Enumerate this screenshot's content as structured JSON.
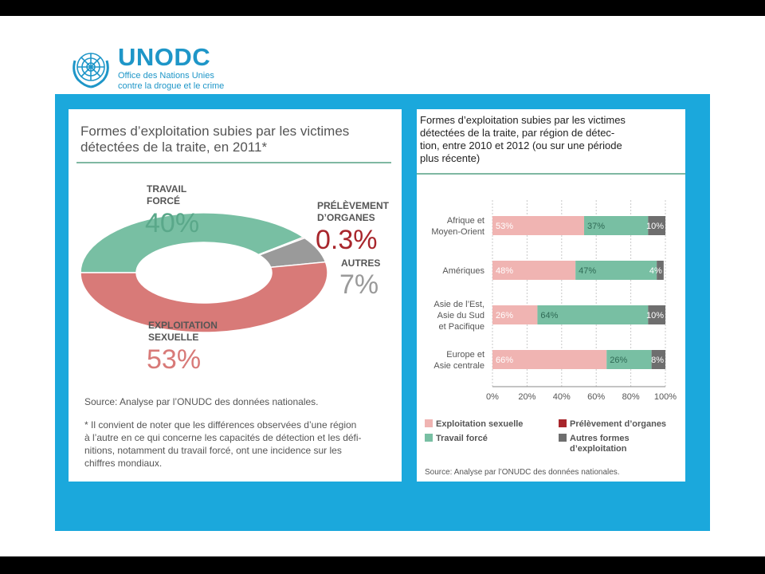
{
  "logo": {
    "brand": "UNODC",
    "line1": "Office des Nations Unies",
    "line2": "contre la drogue et le crime"
  },
  "colors": {
    "sexual": "#d87a78",
    "sexual_light": "#f0b4b2",
    "forced": "#78bfa3",
    "organs": "#a8262c",
    "others": "#9a9a9a",
    "others_dark": "#6e6e6e",
    "band": "#1ba8dc"
  },
  "left": {
    "title_lines": [
      "Formes d’exploitation subies par les victimes",
      "détectées de la traite, en 2011*"
    ],
    "source": "Source: Analyse par l’ONUDC des données nationales.",
    "note_lines": [
      "* Il convient de noter que les différences observées d’une région",
      "à l’autre en ce qui concerne les capacités de détection et les défi-",
      "nitions, notamment du travail forcé, ont une incidence sur les",
      "chiffres mondiaux."
    ]
  },
  "right": {
    "title_lines": [
      "Formes d’exploitation subies par les victimes",
      "détectées de la traite, par région de détec-",
      "tion, entre 2010 et 2012 (ou sur une période",
      "plus récente)"
    ],
    "legend": {
      "sexual": "Exploitation sexuelle",
      "organs": "Prélèvement d’organes",
      "forced": "Travail forcé",
      "others_1": "Autres formes",
      "others_2": "d’exploitation"
    },
    "source": "Source: Analyse par l’ONUDC des données nationales."
  },
  "chart_data": [
    {
      "type": "pie",
      "title": "Formes d’exploitation subies par les victimes détectées de la traite, en 2011*",
      "slices": [
        {
          "label": "TRAVAIL FORCÉ",
          "value": 40,
          "value_text": "40%"
        },
        {
          "label": "PRÉLÈVEMENT D’ORGANES",
          "value": 0.3,
          "value_text": "0.3%"
        },
        {
          "label": "AUTRES",
          "value": 7,
          "value_text": "7%"
        },
        {
          "label": "EXPLOITATION SEXUELLE",
          "value": 53,
          "value_text": "53%"
        }
      ],
      "labels": {
        "forced_1": "TRAVAIL",
        "forced_2": "FORCÉ",
        "organs_1": "PRÉLÈVEMENT",
        "organs_2": "D’ORGANES",
        "others": "AUTRES",
        "sexual_1": "EXPLOITATION",
        "sexual_2": "SEXUELLE"
      },
      "style": "donut"
    },
    {
      "type": "bar",
      "orientation": "horizontal",
      "stacked": true,
      "title": "Formes d’exploitation subies par les victimes détectées de la traite, par région de détection, entre 2010 et 2012 (ou sur une période plus récente)",
      "categories": [
        [
          "Afrique et",
          "Moyen-Orient"
        ],
        [
          "Amériques"
        ],
        [
          "Asie de l’Est,",
          "Asie du Sud",
          "et Pacifique"
        ],
        [
          "Europe et",
          "Asie centrale"
        ]
      ],
      "series": [
        {
          "name": "Exploitation sexuelle",
          "values": [
            53,
            48,
            26,
            66
          ],
          "labels": [
            "53%",
            "48%",
            "26%",
            "66%"
          ]
        },
        {
          "name": "Travail forcé",
          "values": [
            37,
            47,
            64,
            26
          ],
          "labels": [
            "37%",
            "47%",
            "64%",
            "26%"
          ]
        },
        {
          "name": "Autres formes d’exploitation",
          "values": [
            10,
            4,
            10,
            8
          ],
          "labels": [
            "10%",
            "4%",
            "10%",
            "8%"
          ]
        }
      ],
      "xlim": [
        0,
        100
      ],
      "xticks": [
        "0%",
        "20%",
        "40%",
        "60%",
        "80%",
        "100%"
      ],
      "grid": true,
      "legend_position": "bottom"
    }
  ]
}
